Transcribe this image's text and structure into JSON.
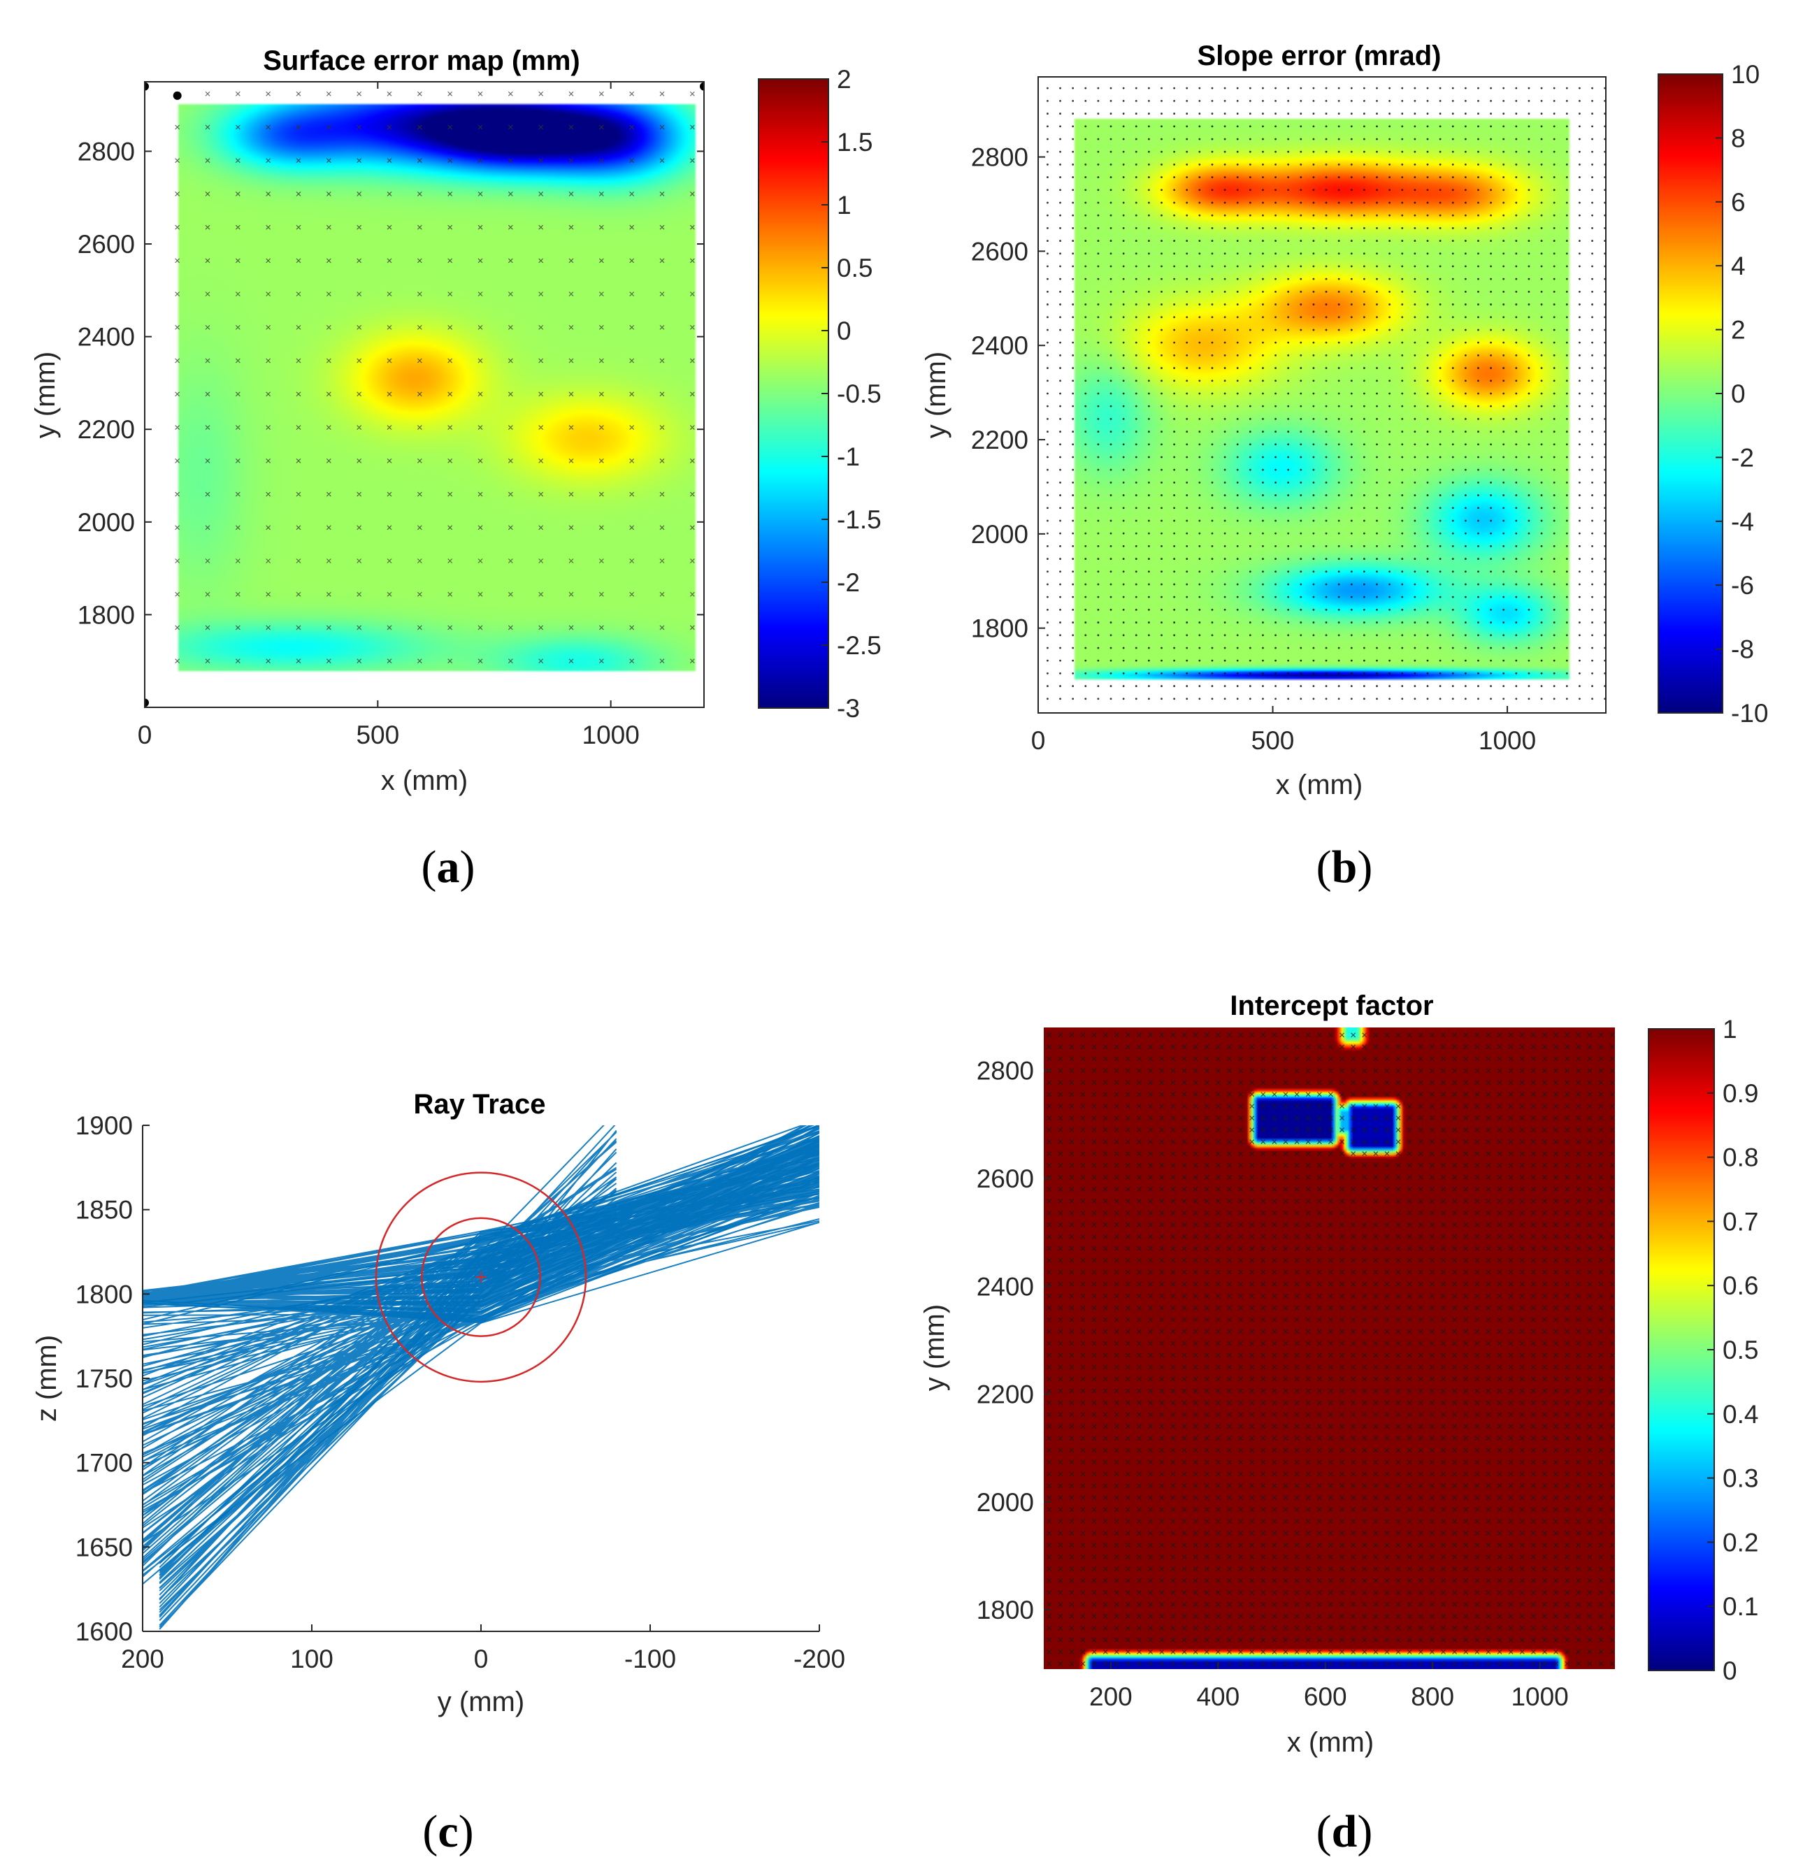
{
  "colors": {
    "axis": "#262626",
    "ray": "#0072bd",
    "circle": "#d62728",
    "marker": "#000000"
  },
  "colormap": "jet",
  "chart_data": [
    {
      "id": "a",
      "type": "heatmap",
      "panel_label": "a",
      "title": "Surface error map (mm)",
      "xlabel": "x (mm)",
      "ylabel": "y (mm)",
      "xlim": [
        0,
        1200
      ],
      "ylim": [
        1600,
        2950
      ],
      "xticks": [
        0,
        500,
        1000
      ],
      "yticks": [
        1800,
        2000,
        2200,
        2400,
        2600,
        2800
      ],
      "grid": false,
      "colorbar": {
        "min": -3,
        "max": 2,
        "ticks": [
          "2",
          "1.5",
          "1",
          "0.5",
          "0",
          "-0.5",
          "-1",
          "-1.5",
          "-2",
          "-2.5",
          "-3"
        ]
      },
      "surface_extent": {
        "x": [
          70,
          1180
        ],
        "y": [
          1680,
          2900
        ]
      },
      "features": [
        {
          "x": 810,
          "y": 2840,
          "value": -3.0,
          "sx": 190,
          "sy": 80
        },
        {
          "x": 560,
          "y": 2860,
          "value": -2.3,
          "sx": 260,
          "sy": 90
        },
        {
          "x": 1020,
          "y": 2830,
          "value": -2.1,
          "sx": 150,
          "sy": 90
        },
        {
          "x": 300,
          "y": 2830,
          "value": -1.4,
          "sx": 140,
          "sy": 70
        },
        {
          "x": 580,
          "y": 2310,
          "value": 0.55,
          "sx": 140,
          "sy": 95
        },
        {
          "x": 950,
          "y": 2180,
          "value": 0.35,
          "sx": 160,
          "sy": 90
        },
        {
          "x": 320,
          "y": 1730,
          "value": -1.1,
          "sx": 300,
          "sy": 55
        },
        {
          "x": 930,
          "y": 1700,
          "value": -1.0,
          "sx": 180,
          "sy": 55
        },
        {
          "x": 120,
          "y": 2100,
          "value": -0.6,
          "sx": 100,
          "sy": 250
        }
      ],
      "base_value": -0.35,
      "markers": {
        "style": "x",
        "x_start": 70,
        "x_step": 65,
        "y_start": 1700,
        "y_step": 72
      },
      "corner_points": [
        [
          0,
          2940
        ],
        [
          1200,
          2940
        ],
        [
          0,
          1610
        ],
        [
          70,
          2920
        ]
      ]
    },
    {
      "id": "b",
      "type": "heatmap",
      "panel_label": "b",
      "title": "Slope error (mrad)",
      "xlabel": "x (mm)",
      "ylabel": "y (mm)",
      "xlim": [
        0,
        1210
      ],
      "ylim": [
        1620,
        2970
      ],
      "xticks": [
        0,
        500,
        1000
      ],
      "yticks": [
        1800,
        2000,
        2200,
        2400,
        2600,
        2800
      ],
      "grid": false,
      "colorbar": {
        "min": -10,
        "max": 10,
        "ticks": [
          "10",
          "8",
          "6",
          "4",
          "2",
          "0",
          "-2",
          "-4",
          "-6",
          "-8",
          "-10"
        ]
      },
      "surface_extent": {
        "x": [
          75,
          1130
        ],
        "y": [
          1690,
          2880
        ]
      },
      "features": [
        {
          "x": 640,
          "y": 2730,
          "value": 7.0,
          "sx": 190,
          "sy": 60
        },
        {
          "x": 380,
          "y": 2730,
          "value": 5.5,
          "sx": 120,
          "sy": 55
        },
        {
          "x": 900,
          "y": 2720,
          "value": 4.8,
          "sx": 140,
          "sy": 60
        },
        {
          "x": 620,
          "y": 2480,
          "value": 5.0,
          "sx": 150,
          "sy": 70
        },
        {
          "x": 960,
          "y": 2340,
          "value": 5.2,
          "sx": 110,
          "sy": 70
        },
        {
          "x": 350,
          "y": 2400,
          "value": 3.8,
          "sx": 160,
          "sy": 90
        },
        {
          "x": 520,
          "y": 2140,
          "value": -2.5,
          "sx": 120,
          "sy": 80
        },
        {
          "x": 950,
          "y": 2030,
          "value": -3.5,
          "sx": 120,
          "sy": 80
        },
        {
          "x": 680,
          "y": 1880,
          "value": -4.5,
          "sx": 180,
          "sy": 55
        },
        {
          "x": 1000,
          "y": 1830,
          "value": -3.0,
          "sx": 100,
          "sy": 60
        },
        {
          "x": 600,
          "y": 1700,
          "value": -9.5,
          "sx": 400,
          "sy": 12
        },
        {
          "x": 150,
          "y": 2250,
          "value": -1.5,
          "sx": 90,
          "sy": 120
        }
      ],
      "base_value": 0.6,
      "markers": {
        "style": "dot",
        "x_start": 20,
        "x_step": 27,
        "y_start": 1650,
        "y_step": 27
      }
    },
    {
      "id": "c",
      "type": "line",
      "panel_label": "c",
      "title": "Ray Trace",
      "xlabel": "y (mm)",
      "ylabel": "z (mm)",
      "xlim": [
        200,
        -200
      ],
      "ylim": [
        1600,
        1900
      ],
      "xticks": [
        200,
        100,
        0,
        -100,
        -200
      ],
      "yticks": [
        1600,
        1650,
        1700,
        1750,
        1800,
        1850,
        1900
      ],
      "grid": false,
      "series": [
        {
          "name": "rays",
          "fan": "upper",
          "count": 80,
          "from_y": 200,
          "from_z": [
            1795,
            1800
          ],
          "to_y": -200,
          "to_z": [
            1860,
            1900
          ]
        },
        {
          "name": "rays",
          "fan": "lower",
          "count": 110,
          "from_y": 200,
          "from_z": [
            1630,
            1795
          ],
          "to_y": -200,
          "to_z": [
            1850,
            1900
          ]
        },
        {
          "name": "rays",
          "fan": "steep",
          "count": 30,
          "from_y": 190,
          "from_z": [
            1600,
            1640
          ],
          "to_y": -80,
          "to_z": [
            1840,
            1900
          ]
        }
      ],
      "target": {
        "center_y": 0,
        "center_z": 1810,
        "radius_outer": 62,
        "radius_inner": 35
      }
    },
    {
      "id": "d",
      "type": "heatmap",
      "panel_label": "d",
      "title": "Intercept factor",
      "xlabel": "x (mm)",
      "ylabel": "y (mm)",
      "xlim": [
        75,
        1140
      ],
      "ylim": [
        1690,
        2880
      ],
      "xticks": [
        200,
        400,
        600,
        800,
        1000
      ],
      "yticks": [
        1800,
        2000,
        2200,
        2400,
        2600,
        2800
      ],
      "grid": false,
      "colorbar": {
        "min": 0,
        "max": 1,
        "ticks": [
          "1",
          "0.9",
          "0.8",
          "0.7",
          "0.6",
          "0.5",
          "0.4",
          "0.3",
          "0.2",
          "0.1",
          "0"
        ]
      },
      "base_value": 1,
      "low_regions": [
        {
          "x": [
            475,
            610
          ],
          "y": [
            2675,
            2745
          ],
          "value": 0.02
        },
        {
          "x": [
            630,
            680
          ],
          "y": [
            2690,
            2725
          ],
          "value": 0.3
        },
        {
          "x": [
            650,
            725
          ],
          "y": [
            2660,
            2730
          ],
          "value": 0.05
        },
        {
          "x": [
            165,
            1030
          ],
          "y": [
            1690,
            1705
          ],
          "value": 0.05
        },
        {
          "x": [
            640,
            660
          ],
          "y": [
            2860,
            2880
          ],
          "value": 0.4
        }
      ],
      "markers": {
        "style": "x",
        "x_start": 85,
        "x_step": 21,
        "y_start": 1700,
        "y_step": 22
      }
    }
  ]
}
